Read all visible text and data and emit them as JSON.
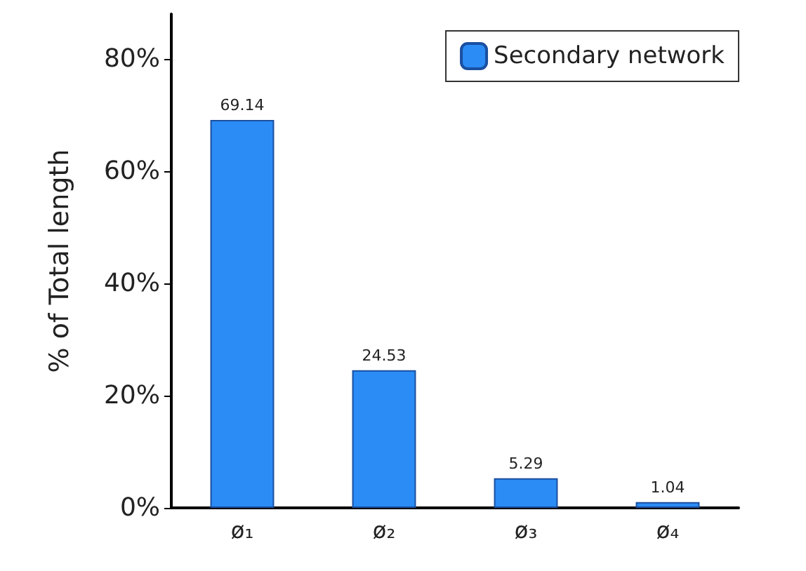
{
  "chart_data": {
    "type": "bar",
    "ylabel": "% of Total length",
    "categories": [
      "ø₁",
      "ø₂",
      "ø₃",
      "ø₄"
    ],
    "series": [
      {
        "name": "Secondary network",
        "color": "#2b8cf5",
        "values": [
          69.14,
          24.53,
          5.29,
          1.04
        ]
      }
    ],
    "ylim": [
      0,
      88
    ],
    "yticks": [
      {
        "value": 0,
        "label": "0%"
      },
      {
        "value": 20,
        "label": "20%"
      },
      {
        "value": 40,
        "label": "40%"
      },
      {
        "value": 60,
        "label": "60%"
      },
      {
        "value": 80,
        "label": "80%"
      }
    ],
    "data_labels": true,
    "legend": "top right",
    "grid": false
  }
}
